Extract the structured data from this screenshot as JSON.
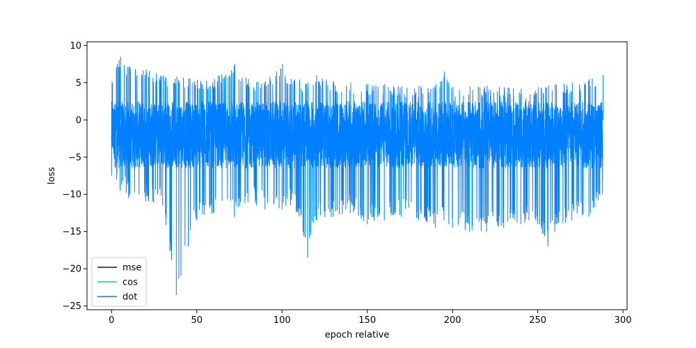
{
  "chart_data": {
    "type": "line",
    "title": "",
    "xlabel": "epoch relative",
    "ylabel": "loss",
    "xlim": [
      -14.4,
      302.4
    ],
    "ylim": [
      -25.5,
      10.5
    ],
    "x_ticks": [
      0,
      50,
      100,
      150,
      200,
      250,
      300
    ],
    "y_ticks": [
      -25,
      -20,
      -15,
      -10,
      -5,
      0,
      5,
      10
    ],
    "x_tick_labels": [
      "0",
      "50",
      "100",
      "150",
      "200",
      "250",
      "300"
    ],
    "y_tick_labels": [
      "−25",
      "−20",
      "−15",
      "−10",
      "−5",
      "0",
      "5",
      "10"
    ],
    "legend_position": "lower-left",
    "grid": false,
    "x_range": [
      0,
      288
    ],
    "series": [
      {
        "name": "mse",
        "color": "#0000cc",
        "visible": false
      },
      {
        "name": "cos",
        "color": "#00bfff",
        "visible": false
      },
      {
        "name": "dot",
        "color": "#007fff",
        "visible": true,
        "envelope": {
          "x": [
            0,
            3,
            5,
            10,
            20,
            30,
            38,
            45,
            50,
            60,
            72,
            80,
            90,
            100,
            105,
            110,
            115,
            120,
            130,
            140,
            150,
            160,
            170,
            180,
            190,
            195,
            200,
            210,
            220,
            230,
            240,
            250,
            256,
            260,
            270,
            280,
            288
          ],
          "high": [
            5.2,
            7.5,
            8.5,
            7.2,
            6.8,
            6.0,
            5.8,
            5.6,
            5.4,
            5.5,
            7.5,
            5.5,
            5.2,
            7.5,
            5.5,
            5.4,
            5.0,
            6.0,
            5.2,
            5.0,
            4.8,
            4.8,
            4.5,
            4.6,
            4.8,
            6.5,
            4.5,
            4.5,
            4.6,
            4.4,
            4.2,
            4.4,
            4.6,
            4.8,
            5.0,
            5.5,
            6.0
          ],
          "low": [
            -7.5,
            -8.0,
            -9.5,
            -10.5,
            -11.0,
            -11.5,
            -23.5,
            -17.0,
            -13.5,
            -12.5,
            -13.0,
            -11.0,
            -12.0,
            -12.0,
            -11.5,
            -13.0,
            -18.5,
            -13.5,
            -13.0,
            -12.5,
            -14.0,
            -13.5,
            -13.0,
            -13.5,
            -14.5,
            -13.5,
            -14.5,
            -15.0,
            -15.0,
            -14.5,
            -14.0,
            -14.0,
            -17.0,
            -15.0,
            -13.5,
            -13.0,
            -10.0
          ]
        }
      }
    ]
  }
}
